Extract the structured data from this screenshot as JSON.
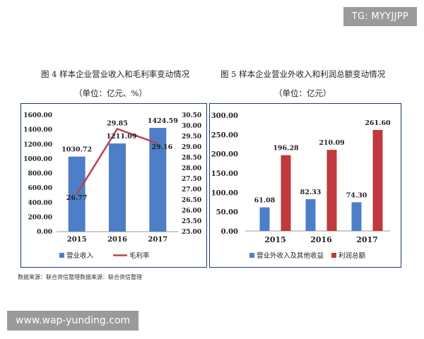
{
  "watermarks": {
    "top": "TG: MYYJJPP",
    "bottom": "www.wap-yunding.com"
  },
  "figure_left": {
    "title": "图 4    样本企业营业收入和毛利率变动情况",
    "unit": "（单位：亿元、%）"
  },
  "figure_right": {
    "title": "图 5    样本企业营业外收入和利润总额变动情况",
    "unit": "（单位：亿元）"
  },
  "source_note": "数据来源：联合资信整理数据来源：联合资信整理",
  "colors": {
    "blue": "#4d7ec8",
    "red": "#c0393d",
    "line": "#b5454e",
    "frame": "#1e3a6e"
  },
  "chart_data": [
    {
      "type": "bar+line",
      "categories": [
        "2015",
        "2016",
        "2017"
      ],
      "series": [
        {
          "name": "营业收入",
          "kind": "bar",
          "axis": "left",
          "values": [
            1030.72,
            1211.09,
            1424.59
          ],
          "labels": [
            "1030.72",
            "1211.09",
            "1424.59"
          ]
        },
        {
          "name": "毛利率",
          "kind": "line",
          "axis": "right",
          "values": [
            26.77,
            29.85,
            29.16
          ],
          "labels": [
            "26.77",
            "29.85",
            "29.16"
          ]
        }
      ],
      "left_axis": {
        "ylim": [
          0,
          1600
        ],
        "ticks": [
          "0.00",
          "200.00",
          "400.00",
          "600.00",
          "800.00",
          "1000.00",
          "1200.00",
          "1400.00",
          "1600.00"
        ]
      },
      "right_axis": {
        "ylim": [
          25,
          30.5
        ],
        "ticks": [
          "25.00",
          "25.50",
          "26.00",
          "26.50",
          "27.00",
          "27.50",
          "28.00",
          "28.50",
          "29.00",
          "29.50",
          "30.00",
          "30.50"
        ]
      },
      "legend_position": "bottom"
    },
    {
      "type": "bar",
      "categories": [
        "2015",
        "2016",
        "2017"
      ],
      "series": [
        {
          "name": "营业外收入及其他收益",
          "values": [
            61.08,
            82.33,
            74.3
          ],
          "labels": [
            "61.08",
            "82.33",
            "74.30"
          ]
        },
        {
          "name": "利润总额",
          "values": [
            196.28,
            210.09,
            261.6
          ],
          "labels": [
            "196.28",
            "210.09",
            "261.60"
          ]
        }
      ],
      "ylim": [
        0,
        300
      ],
      "ticks": [
        "0.00",
        "50.00",
        "100.00",
        "150.00",
        "200.00",
        "250.00",
        "300.00"
      ],
      "legend_position": "bottom"
    }
  ]
}
